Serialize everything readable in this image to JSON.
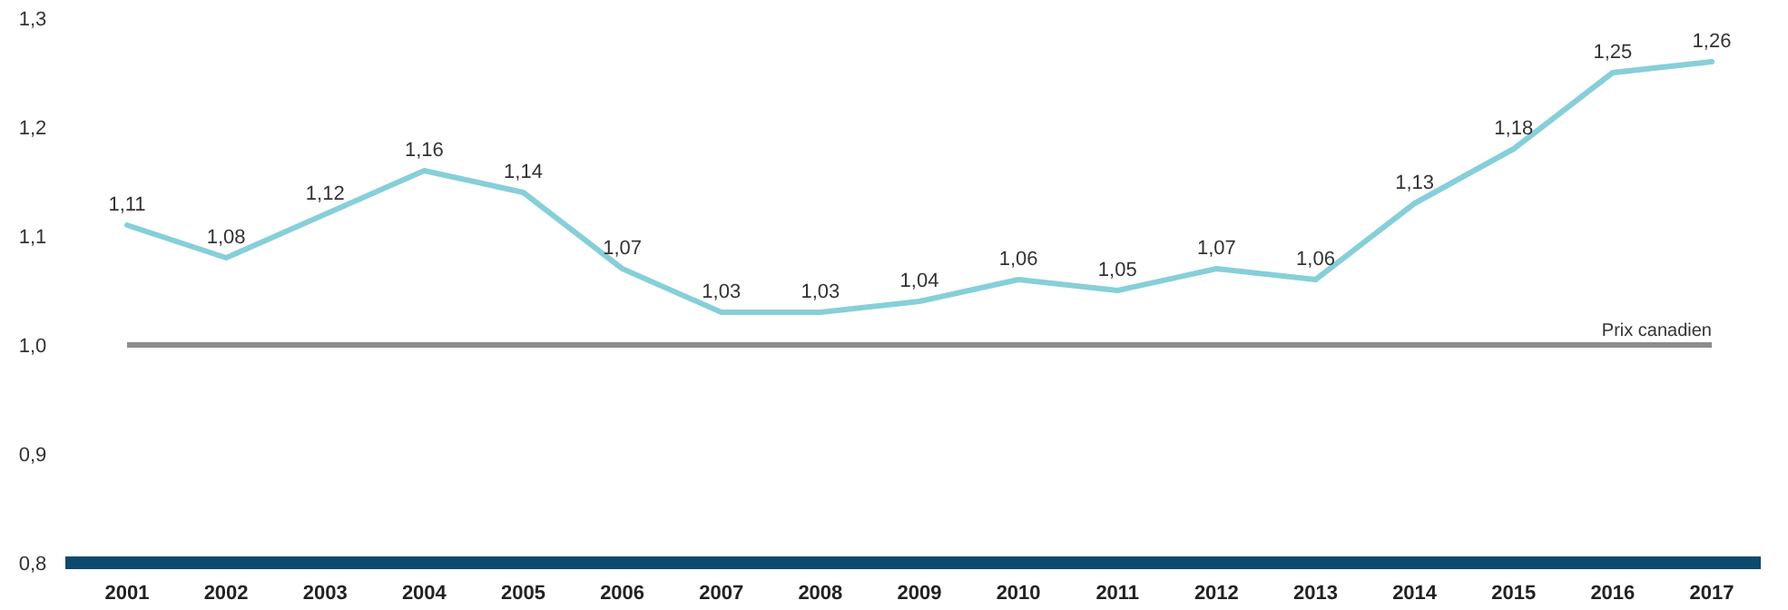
{
  "chart_data": {
    "type": "line",
    "categories": [
      "2001",
      "2002",
      "2003",
      "2004",
      "2005",
      "2006",
      "2007",
      "2008",
      "2009",
      "2010",
      "2011",
      "2012",
      "2013",
      "2014",
      "2015",
      "2016",
      "2017"
    ],
    "series": [
      {
        "color": "#86cfd9",
        "values": [
          1.11,
          1.08,
          1.12,
          1.16,
          1.14,
          1.07,
          1.03,
          1.03,
          1.04,
          1.06,
          1.05,
          1.07,
          1.06,
          1.13,
          1.18,
          1.25,
          1.26
        ],
        "value_labels": [
          "1,11",
          "1,08",
          "1,12",
          "1,16",
          "1,14",
          "1,07",
          "1,03",
          "1,03",
          "1,04",
          "1,06",
          "1,05",
          "1,07",
          "1,06",
          "1,13",
          "1,18",
          "1,25",
          "1,26"
        ]
      }
    ],
    "ylim": [
      0.8,
      1.3
    ],
    "yticks": [
      {
        "value": 0.8,
        "label": "0,8"
      },
      {
        "value": 0.9,
        "label": "0,9"
      },
      {
        "value": 1.0,
        "label": "1,0"
      },
      {
        "value": 1.1,
        "label": "1,1"
      },
      {
        "value": 1.2,
        "label": "1,2"
      },
      {
        "value": 1.3,
        "label": "1,3"
      }
    ],
    "ref_lines": [
      {
        "axis": "y",
        "value": 1.0,
        "label": "Prix canadien",
        "color": "#8c8c8c"
      }
    ],
    "grid": false,
    "marker": "none",
    "line_style": "solid"
  }
}
